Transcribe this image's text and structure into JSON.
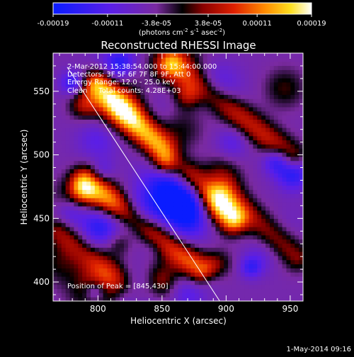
{
  "chart_data": {
    "type": "heatmap",
    "title": "Reconstructed RHESSI Image",
    "xlabel": "Heliocentric X (arcsec)",
    "ylabel": "Heliocentric Y (arcsec)",
    "xlim": [
      765,
      960
    ],
    "ylim": [
      385,
      580
    ],
    "x_ticks": [
      800,
      850,
      900,
      950
    ],
    "y_ticks": [
      400,
      450,
      500,
      550
    ],
    "x_tick_labels": [
      "800",
      "850",
      "900",
      "950"
    ],
    "y_tick_labels": [
      "400",
      "450",
      "500",
      "550"
    ],
    "colorbar": {
      "range": [
        -0.00019,
        0.00019
      ],
      "tick_labels": [
        "-0.00019",
        "-0.00011",
        "-3.8e-05",
        "3.8e-05",
        "0.00011",
        "0.00019"
      ],
      "unit_prefix": "(photons cm",
      "unit_exp1": "-2",
      "unit_mid": " s",
      "unit_exp2": "-1",
      "unit_mid2": " asec",
      "unit_exp3": "-2",
      "unit_suffix": ")"
    },
    "annotations": {
      "time_range": "2-Mar-2012 15:38:54.000 to 15:44:00.000",
      "detectors": "Detectors: 3F 5F 6F 7F 8F 9F, Att 0",
      "energy_range": "Energy Range: 12.0 - 25.0 keV",
      "method_counts": "Clean     Total counts: 4.28E+03",
      "peak": "Position of Peak = [845,430]"
    },
    "limb_line": [
      [
        776,
        569
      ],
      [
        895,
        385
      ]
    ],
    "footer_date": "1-May-2014 09:16",
    "emission_ridges": [
      {
        "x0": 800,
        "y0": 555,
        "x1": 905,
        "y1": 450,
        "intensity": 0.00019
      },
      {
        "x0": 790,
        "y0": 480,
        "x1": 880,
        "y1": 410,
        "intensity": 0.00015
      },
      {
        "x0": 860,
        "y0": 570,
        "x1": 950,
        "y1": 500,
        "intensity": 0.00011
      },
      {
        "x0": 770,
        "y0": 440,
        "x1": 830,
        "y1": 390,
        "intensity": 9e-05
      },
      {
        "x0": 900,
        "y0": 470,
        "x1": 955,
        "y1": 420,
        "intensity": 8e-05
      }
    ]
  }
}
